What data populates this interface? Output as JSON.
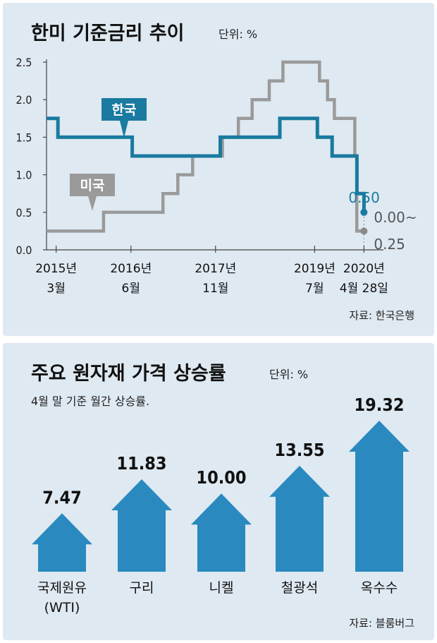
{
  "top": {
    "title": "한미 기준금리 추이",
    "unit": "단위: %",
    "source": "자료: 한국은행",
    "korea_label": "한국",
    "us_label": "미국",
    "korea_end_label": "0.50",
    "us_end_label_1": "0.00~",
    "us_end_label_2": "0.25",
    "x_labels": [
      {
        "line1": "2015년",
        "line2": "3월"
      },
      {
        "line1": "2016년",
        "line2": "6월"
      },
      {
        "line1": "2017년",
        "line2": "11월"
      },
      {
        "line1": "2019년",
        "line2": "7월"
      },
      {
        "line1": "2020년",
        "line2": "4월 28일"
      }
    ],
    "colors": {
      "korea": "#1a7aa0",
      "us": "#9a9a9a",
      "korea_dot": "#1a7aa0",
      "us_dot": "#8a8a8a"
    }
  },
  "bottom": {
    "title": "주요 원자재 가격 상승률",
    "unit": "단위: %",
    "subtitle": "4월 말 기준 월간 상승률.",
    "source": "자료: 블룸버그",
    "arrow_color": "#2a8ac0"
  },
  "chart_data": [
    {
      "type": "line",
      "title": "한미 기준금리 추이",
      "ylabel": "단위: %",
      "ylim": [
        0,
        2.5
      ],
      "yticks": [
        "0.0",
        "0.5",
        "1.0",
        "1.5",
        "2.0",
        "2.5"
      ],
      "xlim": [
        "2015-01-01",
        "2020-05-31"
      ],
      "x_tick_dates": [
        "2015-03-01",
        "2016-06-01",
        "2017-11-01",
        "2019-07-01",
        "2020-04-28"
      ],
      "grid": false,
      "series": [
        {
          "name": "한국",
          "step": true,
          "points": [
            [
              "2015-01-01",
              1.75
            ],
            [
              "2015-03-12",
              1.5
            ],
            [
              "2015-06-11",
              1.5
            ],
            [
              "2016-06-09",
              1.25
            ],
            [
              "2017-11-30",
              1.5
            ],
            [
              "2018-11-30",
              1.75
            ],
            [
              "2019-07-18",
              1.5
            ],
            [
              "2019-10-16",
              1.25
            ],
            [
              "2020-03-16",
              0.75
            ],
            [
              "2020-04-28",
              0.5
            ]
          ],
          "end_value": 0.5
        },
        {
          "name": "미국",
          "step": true,
          "points": [
            [
              "2015-01-01",
              0.25
            ],
            [
              "2015-12-16",
              0.5
            ],
            [
              "2016-12-14",
              0.75
            ],
            [
              "2017-03-15",
              1.0
            ],
            [
              "2017-06-14",
              1.25
            ],
            [
              "2017-12-13",
              1.5
            ],
            [
              "2018-03-21",
              1.75
            ],
            [
              "2018-06-13",
              2.0
            ],
            [
              "2018-09-26",
              2.25
            ],
            [
              "2018-12-19",
              2.5
            ],
            [
              "2019-07-31",
              2.25
            ],
            [
              "2019-09-18",
              2.0
            ],
            [
              "2019-10-30",
              1.75
            ],
            [
              "2020-03-03",
              1.25
            ],
            [
              "2020-03-15",
              0.25
            ],
            [
              "2020-04-28",
              0.25
            ]
          ],
          "end_value": 0.25
        }
      ]
    },
    {
      "type": "bar",
      "title": "주요 원자재 가격 상승률",
      "ylabel": "단위: %",
      "categories": [
        "국제원유 (WTI)",
        "구리",
        "니켈",
        "철광석",
        "옥수수"
      ],
      "category_lines": [
        [
          "국제원유",
          "(WTI)"
        ],
        [
          "구리"
        ],
        [
          "니켈"
        ],
        [
          "철광석"
        ],
        [
          "옥수수"
        ]
      ],
      "values": [
        7.47,
        11.83,
        10.0,
        13.55,
        19.32
      ],
      "value_labels": [
        "7.47",
        "11.83",
        "10.00",
        "13.55",
        "19.32"
      ]
    }
  ]
}
